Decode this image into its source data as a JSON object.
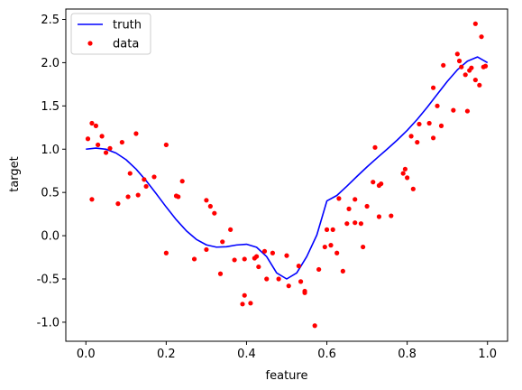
{
  "chart_data": {
    "type": "line",
    "xlabel": "feature",
    "ylabel": "target",
    "xlim": [
      -0.05,
      1.05
    ],
    "ylim": [
      -1.22,
      2.62
    ],
    "xticks": [
      "0.0",
      "0.2",
      "0.4",
      "0.6",
      "0.8",
      "1.0"
    ],
    "yticks": [
      "-1.0",
      "-0.5",
      "0.0",
      "0.5",
      "1.0",
      "1.5",
      "2.0",
      "2.5"
    ],
    "grid": false,
    "legend_position": "top-left",
    "series": [
      {
        "name": "truth",
        "kind": "line",
        "color": "#0000ff",
        "x": [
          0.0,
          0.025,
          0.05,
          0.075,
          0.1,
          0.125,
          0.15,
          0.175,
          0.2,
          0.225,
          0.25,
          0.275,
          0.3,
          0.325,
          0.35,
          0.375,
          0.4,
          0.425,
          0.45,
          0.475,
          0.5,
          0.525,
          0.55,
          0.575,
          0.6,
          0.625,
          0.65,
          0.675,
          0.7,
          0.725,
          0.75,
          0.775,
          0.8,
          0.825,
          0.85,
          0.875,
          0.9,
          0.925,
          0.95,
          0.975,
          1.0
        ],
        "y": [
          1.0,
          1.0124,
          0.9998,
          0.9559,
          0.8785,
          0.7697,
          0.6356,
          0.4857,
          0.3316,
          0.1852,
          0.0573,
          -0.0425,
          -0.1061,
          -0.1322,
          -0.1276,
          -0.1073,
          -0.0985,
          -0.1337,
          -0.2411,
          -0.4301,
          -0.5,
          -0.4301,
          -0.2411,
          0.0071,
          0.4015,
          0.4653,
          0.5725,
          0.6856,
          0.7951,
          0.8989,
          1.0,
          1.1043,
          1.2176,
          1.3443,
          1.4848,
          1.6347,
          1.7839,
          1.9173,
          2.017,
          2.066,
          2.0
        ]
      },
      {
        "name": "data",
        "kind": "scatter",
        "color": "#ff0000",
        "x": [
          0.005,
          0.015,
          0.015,
          0.025,
          0.03,
          0.04,
          0.05,
          0.06,
          0.08,
          0.09,
          0.105,
          0.11,
          0.125,
          0.13,
          0.145,
          0.15,
          0.17,
          0.2,
          0.2,
          0.225,
          0.23,
          0.24,
          0.27,
          0.3,
          0.3,
          0.31,
          0.32,
          0.335,
          0.34,
          0.36,
          0.37,
          0.39,
          0.395,
          0.395,
          0.41,
          0.42,
          0.425,
          0.43,
          0.445,
          0.45,
          0.465,
          0.48,
          0.5,
          0.505,
          0.53,
          0.535,
          0.545,
          0.545,
          0.57,
          0.58,
          0.595,
          0.6,
          0.61,
          0.615,
          0.625,
          0.63,
          0.64,
          0.65,
          0.655,
          0.67,
          0.67,
          0.685,
          0.69,
          0.7,
          0.715,
          0.72,
          0.73,
          0.73,
          0.735,
          0.76,
          0.79,
          0.795,
          0.8,
          0.81,
          0.815,
          0.825,
          0.83,
          0.855,
          0.865,
          0.865,
          0.875,
          0.885,
          0.89,
          0.915,
          0.925,
          0.93,
          0.935,
          0.945,
          0.95,
          0.955,
          0.96,
          0.97,
          0.97,
          0.98,
          0.985,
          0.99,
          0.995
        ],
        "y": [
          1.12,
          0.42,
          1.3,
          1.27,
          1.05,
          1.15,
          0.96,
          1.01,
          0.37,
          1.08,
          0.45,
          0.72,
          1.18,
          0.47,
          0.65,
          0.57,
          0.68,
          1.05,
          -0.2,
          0.46,
          0.45,
          0.63,
          -0.27,
          0.41,
          -0.16,
          0.34,
          0.26,
          -0.44,
          -0.07,
          0.07,
          -0.28,
          -0.79,
          -0.69,
          -0.27,
          -0.78,
          -0.26,
          -0.24,
          -0.36,
          -0.18,
          -0.5,
          -0.2,
          -0.5,
          -0.23,
          -0.58,
          -0.35,
          -0.53,
          -0.66,
          -0.64,
          -1.04,
          -0.39,
          -0.13,
          0.07,
          -0.11,
          0.07,
          -0.2,
          0.43,
          -0.41,
          0.14,
          0.31,
          0.42,
          0.15,
          0.14,
          -0.13,
          0.34,
          0.62,
          1.02,
          0.22,
          0.58,
          0.6,
          0.23,
          0.72,
          0.77,
          0.67,
          1.15,
          0.54,
          1.08,
          1.29,
          1.3,
          1.13,
          1.71,
          1.5,
          1.27,
          1.97,
          1.45,
          2.1,
          2.02,
          1.95,
          1.86,
          1.44,
          1.91,
          1.94,
          1.8,
          2.45,
          1.74,
          2.3,
          1.95,
          1.96
        ]
      }
    ]
  }
}
